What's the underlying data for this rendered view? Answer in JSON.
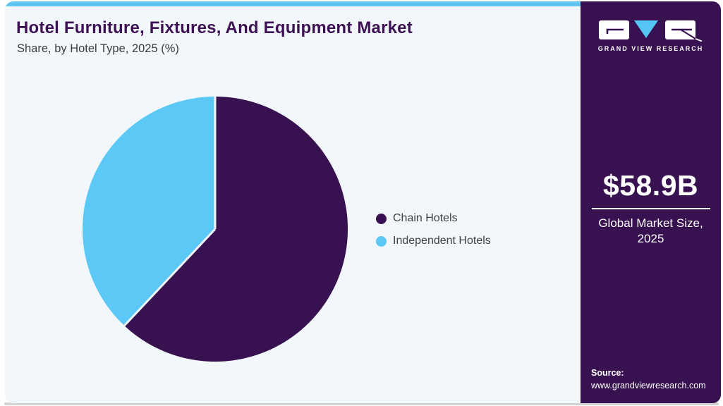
{
  "header": {
    "title": "Hotel Furniture, Fixtures, And Equipment Market",
    "subtitle": "Share, by Hotel Type, 2025 (%)"
  },
  "chart_data": {
    "type": "pie",
    "title": "Hotel Furniture, Fixtures, And Equipment Market Share, by Hotel Type, 2025 (%)",
    "categories": [
      "Chain Hotels",
      "Independent Hotels"
    ],
    "values": [
      62,
      38
    ],
    "unit": "%",
    "colors": [
      "#371150",
      "#5bc8f5"
    ],
    "start_angle_deg": 0,
    "direction": "clockwise",
    "legend_position": "right",
    "separator_color": "#f2f7fb"
  },
  "legend": {
    "items": [
      {
        "label": "Chain Hotels",
        "color": "#371150"
      },
      {
        "label": "Independent Hotels",
        "color": "#5bc8f5"
      }
    ]
  },
  "sidebar": {
    "brand": "GRAND VIEW RESEARCH",
    "market_size": "$58.9B",
    "market_size_label": "Global Market Size, 2025",
    "source_label": "Source:",
    "source_url": "www.grandviewresearch.com",
    "background_color": "#371150",
    "accent_blue": "#55c6f3"
  },
  "theme": {
    "top_accent_bar": "#60c5f0",
    "chart_background": "#f2f7fb",
    "title_color": "#3d1153",
    "bottom_shadow": "#d3d3d3"
  }
}
